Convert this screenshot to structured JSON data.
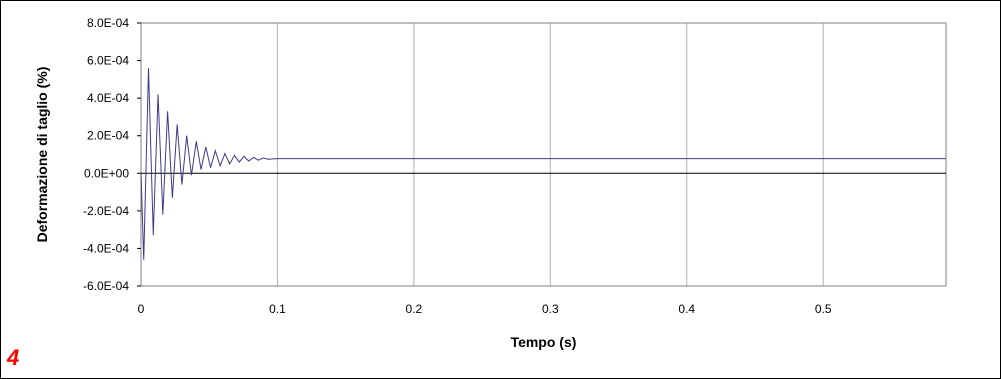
{
  "panel_label": "4",
  "colors": {
    "line": "#3b3b8c",
    "grid": "#b3b3b3",
    "zero_line": "#000000",
    "panel_label": "#ff0000"
  },
  "chart_data": {
    "type": "line",
    "title": "",
    "xlabel": "Tempo (s)",
    "ylabel": "Deformazione di taglio (%)",
    "xlim": [
      0,
      0.59
    ],
    "ylim": [
      -0.0006,
      0.0008
    ],
    "x_ticks": [
      0,
      0.1,
      0.2,
      0.3,
      0.4,
      0.5
    ],
    "x_tick_labels": [
      "0",
      "0.1",
      "0.2",
      "0.3",
      "0.4",
      "0.5"
    ],
    "y_ticks": [
      -0.0006,
      -0.0004,
      -0.0002,
      0,
      0.0002,
      0.0004,
      0.0006,
      0.0008
    ],
    "y_tick_labels": [
      "-6.0E-04",
      "-4.0E-04",
      "-2.0E-04",
      "0.0E+00",
      "2.0E-04",
      "4.0E-04",
      "6.0E-04",
      "8.0E-04"
    ],
    "grid": "vertical",
    "legend": "none",
    "series": [
      {
        "x": [
          0,
          0.002,
          0.0055,
          0.009,
          0.0125,
          0.016,
          0.0195,
          0.023,
          0.0265,
          0.03,
          0.0335,
          0.037,
          0.0405,
          0.044,
          0.0475,
          0.051,
          0.0545,
          0.058,
          0.0615,
          0.065,
          0.0685,
          0.072,
          0.0755,
          0.079,
          0.0825,
          0.086,
          0.0895,
          0.093,
          0.1,
          0.15,
          0.2,
          0.3,
          0.4,
          0.5,
          0.59
        ],
        "y": [
          0.0,
          -0.00046,
          0.00056,
          -0.00033,
          0.00042,
          -0.00022,
          0.00033,
          -0.00013,
          0.00026,
          -6e-05,
          0.0002,
          -1e-05,
          0.00017,
          2e-05,
          0.00014,
          3e-05,
          0.00012,
          4e-05,
          0.000105,
          5e-05,
          9.5e-05,
          6e-05,
          9e-05,
          6.5e-05,
          8.5e-05,
          7e-05,
          8.2e-05,
          7.5e-05,
          7.8e-05,
          7.8e-05,
          7.8e-05,
          7.8e-05,
          7.8e-05,
          7.8e-05,
          7.8e-05
        ]
      }
    ]
  }
}
